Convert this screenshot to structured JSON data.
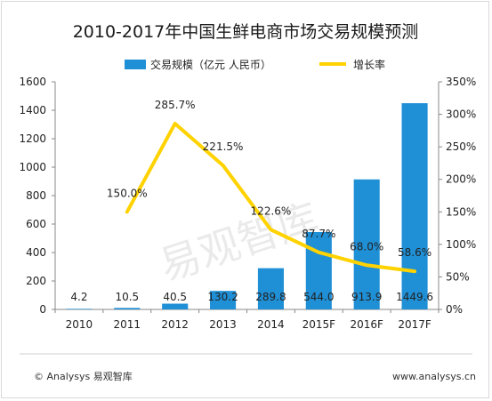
{
  "chart_data": {
    "type": "bar",
    "title": "2010-2017年中国生鲜电商市场交易规模预测",
    "categories": [
      "2010",
      "2011",
      "2012",
      "2013",
      "2014",
      "2015F",
      "2016F",
      "2017F"
    ],
    "series": [
      {
        "name": "交易规模（亿元 人民币）",
        "kind": "bar",
        "axis": "left",
        "color": "#1f8fd6",
        "values": [
          4.2,
          10.5,
          40.5,
          130.2,
          289.8,
          544.0,
          913.9,
          1449.6
        ],
        "labels": [
          "4.2",
          "10.5",
          "40.5",
          "130.2",
          "289.8",
          "544.0",
          "913.9",
          "1449.6"
        ]
      },
      {
        "name": "增长率",
        "kind": "line",
        "axis": "right",
        "color": "#ffd200",
        "values": [
          null,
          150.0,
          285.7,
          221.5,
          122.6,
          87.7,
          68.0,
          58.6
        ],
        "labels": [
          "",
          "150.0%",
          "285.7%",
          "221.5%",
          "122.6%",
          "87.7%",
          "68.0%",
          "58.6%"
        ]
      }
    ],
    "y_left": {
      "ylim": [
        0,
        1600
      ],
      "ticks": [
        "0",
        "200",
        "400",
        "600",
        "800",
        "1000",
        "1200",
        "1400",
        "1600"
      ]
    },
    "y_right": {
      "ylim": [
        0,
        350
      ],
      "ticks": [
        "0%",
        "50%",
        "100%",
        "150%",
        "200%",
        "250%",
        "300%",
        "350%"
      ]
    },
    "grid": false,
    "legend_position": "top"
  },
  "watermark": "易观智库",
  "footer": {
    "source": "© Analysys 易观智库",
    "website": "www.analysys.cn"
  }
}
